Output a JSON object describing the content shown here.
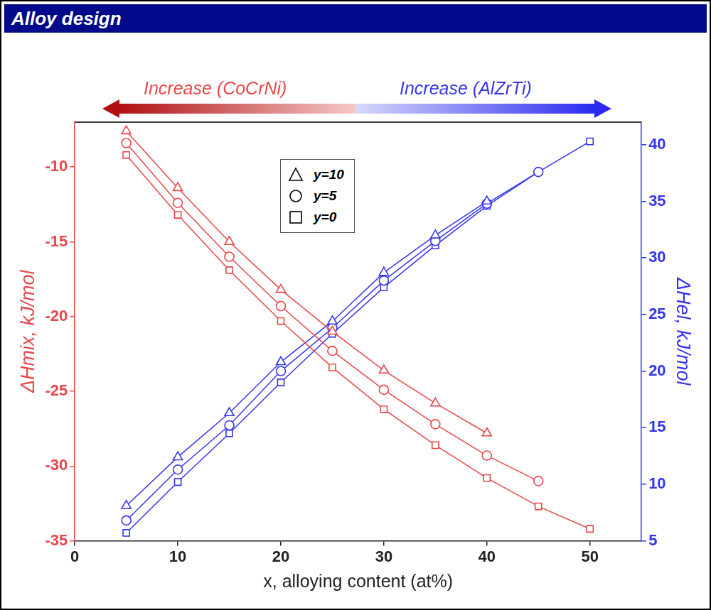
{
  "chart_data": {
    "type": "scatter",
    "title": "Alloy design",
    "annotations": [
      "Increase (CoCrNi)",
      "Increase (AlZrTi)"
    ],
    "x_label": "x, alloying content (at%)",
    "y_label": "ΔHmix, kJ/mol",
    "y2_label": "ΔHel, kJ/mol",
    "xlim": [
      0,
      55
    ],
    "xticks": [
      0,
      10,
      20,
      30,
      40,
      50
    ],
    "ylim": [
      -35,
      -7
    ],
    "yticks": [
      -35,
      -30,
      -25,
      -20,
      -15,
      -10
    ],
    "y2lim": [
      5,
      42
    ],
    "y2ticks": [
      5,
      10,
      15,
      20,
      25,
      30,
      35,
      40
    ],
    "grid": false,
    "legend": "upper center",
    "series": [
      {
        "name": "y=10",
        "color": "#e8474a",
        "marker": "triangle",
        "line_style": "solid",
        "x": [
          5,
          10,
          15,
          20,
          25,
          30,
          35,
          40
        ],
        "values": [
          -7.6,
          -11.4,
          -15.0,
          -18.2,
          -21.0,
          -23.6,
          -25.8,
          -27.8
        ]
      },
      {
        "name": "y=5",
        "color": "#e8474a",
        "marker": "circle",
        "line_style": "solid",
        "x": [
          5,
          10,
          15,
          20,
          25,
          30,
          35,
          40,
          45
        ],
        "values": [
          -8.4,
          -12.4,
          -16.0,
          -19.3,
          -22.3,
          -24.9,
          -27.2,
          -29.3,
          -31.0
        ]
      },
      {
        "name": "y=0",
        "color": "#e8474a",
        "marker": "square",
        "line_style": "solid",
        "x": [
          5,
          10,
          15,
          20,
          25,
          30,
          35,
          40,
          45,
          50
        ],
        "values": [
          -9.2,
          -13.2,
          -16.9,
          -20.3,
          -23.4,
          -26.2,
          -28.6,
          -30.8,
          -32.7,
          -34.2
        ]
      },
      {
        "name": "y=10",
        "color": "#3535ee",
        "marker": "triangle",
        "line_style": "solid",
        "axis": "y2",
        "x": [
          5,
          10,
          15,
          20,
          25,
          30,
          35,
          40
        ],
        "values": [
          8.1,
          12.4,
          16.3,
          20.8,
          24.4,
          28.7,
          32.0,
          35.0
        ]
      },
      {
        "name": "y=5",
        "color": "#3535ee",
        "marker": "circle",
        "line_style": "solid",
        "axis": "y2",
        "x": [
          5,
          10,
          15,
          20,
          25,
          30,
          35,
          40,
          45
        ],
        "values": [
          6.8,
          11.3,
          15.2,
          20.0,
          23.8,
          28.0,
          31.5,
          34.8,
          37.6
        ]
      },
      {
        "name": "y=0",
        "color": "#3535ee",
        "marker": "square",
        "line_style": "solid",
        "axis": "y2",
        "x": [
          5,
          10,
          15,
          20,
          25,
          30,
          35,
          40,
          45,
          50
        ],
        "values": [
          5.7,
          10.2,
          14.5,
          19.0,
          23.3,
          27.4,
          31.1,
          34.6,
          37.6,
          40.3
        ]
      }
    ]
  }
}
